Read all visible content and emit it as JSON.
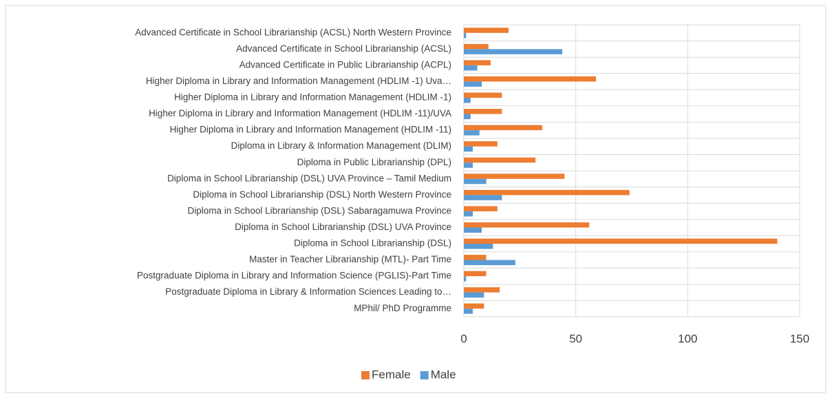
{
  "chart_data": {
    "type": "bar",
    "orientation": "horizontal",
    "categories": [
      "Advanced Certificate in School Librarianship (ACSL) North Western Province",
      "Advanced Certificate in School Librarianship (ACSL)",
      "Advanced Certificate in Public Librarianship (ACPL)",
      "Higher Diploma in Library and Information Management (HDLIM -1) Uva…",
      "Higher Diploma in Library and Information Management (HDLIM -1)",
      "Higher Diploma in Library and Information Management (HDLIM -11)/UVA",
      "Higher Diploma in Library and Information Management (HDLIM -11)",
      "Diploma in Library & Information Management (DLIM)",
      "Diploma in Public Librarianship (DPL)",
      "Diploma in School Librarianship (DSL) UVA Province – Tamil Medium",
      "Diploma in School Librarianship (DSL) North Western Province",
      "Diploma in School Librarianship (DSL) Sabaragamuwa Province",
      "Diploma in School Librarianship (DSL) UVA Province",
      "Diploma in School Librarianship (DSL)",
      "Master in Teacher Librarianship (MTL)- Part Time",
      "Postgraduate Diploma in Library and Information Science (PGLIS)-Part Time",
      "Postgraduate Diploma in Library & Information Sciences Leading to…",
      "MPhil/ PhD Programme"
    ],
    "series": [
      {
        "name": "Female",
        "color": "#ed7d31",
        "values": [
          20,
          11,
          12,
          59,
          17,
          17,
          35,
          15,
          32,
          45,
          74,
          15,
          56,
          140,
          10,
          10,
          16,
          9
        ]
      },
      {
        "name": "Male",
        "color": "#5b9bd5",
        "values": [
          1,
          44,
          6,
          8,
          3,
          3,
          7,
          4,
          4,
          10,
          17,
          4,
          8,
          13,
          23,
          1,
          9,
          4
        ]
      }
    ],
    "xlim": [
      0,
      150
    ],
    "xticks": [
      0,
      50,
      100,
      150
    ],
    "grid": true,
    "legend": "bottom"
  }
}
